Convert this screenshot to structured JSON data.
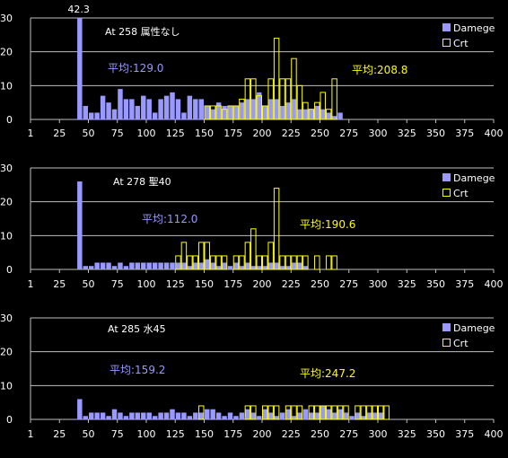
{
  "colors": {
    "background": "#000000",
    "gridline": "#c0c0c0",
    "axis": "#c0c0c0",
    "text": "#ffffff",
    "damage_fill": "#9999ff",
    "crit_stroke": "#ffff00",
    "damage_avg_text": "#9999ff",
    "crit_avg_text": "#ffff00"
  },
  "chart_data": [
    {
      "type": "bar",
      "title": "At 258 属性なし",
      "xlim": [
        0,
        400
      ],
      "ylim": [
        0,
        30
      ],
      "xticks": [
        "1",
        "25",
        "50",
        "75",
        "100",
        "125",
        "150",
        "175",
        "200",
        "225",
        "250",
        "275",
        "300",
        "325",
        "350",
        "375",
        "400"
      ],
      "yticks": [
        "0",
        "10",
        "20",
        "30"
      ],
      "legend_position": "top-right",
      "annotations": [
        {
          "text": "42.3",
          "at_x": 40
        },
        {
          "text": "平均:129.0",
          "series": "Damege"
        },
        {
          "text": "平均:208.8",
          "series": "Crt"
        }
      ],
      "series": [
        {
          "name": "Damege",
          "x": [
            40,
            45,
            50,
            55,
            60,
            65,
            70,
            75,
            80,
            85,
            90,
            95,
            100,
            105,
            110,
            115,
            120,
            125,
            130,
            135,
            140,
            145,
            150,
            155,
            160,
            165,
            170,
            175,
            180,
            185,
            190,
            195,
            200,
            205,
            210,
            215,
            220,
            225,
            230,
            235,
            240,
            245,
            250,
            255,
            260,
            265
          ],
          "values": [
            30,
            4,
            2,
            2,
            7,
            5,
            3,
            9,
            6,
            6,
            4,
            7,
            6,
            2,
            6,
            7,
            8,
            6,
            2,
            7,
            6,
            6,
            4,
            3,
            5,
            4,
            4,
            4,
            5,
            6,
            6,
            8,
            4,
            6,
            6,
            4,
            5,
            6,
            3,
            3,
            3,
            4,
            3,
            2,
            1,
            2
          ]
        },
        {
          "name": "Crt",
          "x": [
            150,
            155,
            160,
            165,
            170,
            175,
            180,
            185,
            190,
            195,
            200,
            205,
            210,
            215,
            220,
            225,
            230,
            235,
            240,
            245,
            250,
            255,
            260
          ],
          "values": [
            4,
            4,
            4,
            3,
            4,
            4,
            6,
            12,
            12,
            7,
            4,
            12,
            24,
            12,
            12,
            18,
            10,
            5,
            3,
            5,
            8,
            3,
            12
          ]
        }
      ]
    },
    {
      "type": "bar",
      "title": "At 278 聖40",
      "xlim": [
        0,
        400
      ],
      "ylim": [
        0,
        30
      ],
      "xticks": [
        "1",
        "25",
        "50",
        "75",
        "100",
        "125",
        "150",
        "175",
        "200",
        "225",
        "250",
        "275",
        "300",
        "325",
        "350",
        "375",
        "400"
      ],
      "yticks": [
        "0",
        "10",
        "20",
        "30"
      ],
      "legend_position": "top-right",
      "annotations": [
        {
          "text": "平均:112.0",
          "series": "Damege"
        },
        {
          "text": "平均:190.6",
          "series": "Crt"
        }
      ],
      "series": [
        {
          "name": "Damege",
          "x": [
            40,
            45,
            50,
            55,
            60,
            65,
            70,
            75,
            80,
            85,
            90,
            95,
            100,
            105,
            110,
            115,
            120,
            125,
            130,
            135,
            140,
            145,
            150,
            155,
            160,
            165,
            170,
            175,
            180,
            185,
            190,
            195,
            200,
            205,
            210,
            215,
            220,
            225,
            230,
            235
          ],
          "values": [
            26,
            1,
            1,
            2,
            2,
            2,
            1,
            2,
            1,
            2,
            2,
            2,
            2,
            2,
            2,
            2,
            2,
            2,
            2,
            1,
            2,
            2,
            3,
            2,
            1,
            2,
            1,
            2,
            1,
            2,
            1,
            1,
            1,
            2,
            2,
            1,
            1,
            2,
            2,
            1
          ]
        },
        {
          "name": "Crt",
          "x": [
            125,
            130,
            135,
            140,
            145,
            150,
            155,
            160,
            165,
            175,
            180,
            185,
            190,
            195,
            200,
            205,
            210,
            215,
            220,
            225,
            230,
            235,
            245,
            255,
            260
          ],
          "values": [
            4,
            8,
            4,
            4,
            8,
            8,
            4,
            4,
            4,
            4,
            4,
            8,
            12,
            4,
            4,
            8,
            24,
            4,
            4,
            4,
            4,
            4,
            4,
            4,
            4
          ]
        }
      ]
    },
    {
      "type": "bar",
      "title": "At 285 水45",
      "xlim": [
        0,
        400
      ],
      "ylim": [
        0,
        30
      ],
      "xticks": [
        "1",
        "25",
        "50",
        "75",
        "100",
        "125",
        "150",
        "175",
        "200",
        "225",
        "250",
        "275",
        "300",
        "325",
        "350",
        "375",
        "400"
      ],
      "yticks": [
        "0",
        "10",
        "20",
        "30"
      ],
      "legend_position": "top-right",
      "annotations": [
        {
          "text": "平均:159.2",
          "series": "Damege"
        },
        {
          "text": "平均:247.2",
          "series": "Crt"
        }
      ],
      "series": [
        {
          "name": "Damege",
          "x": [
            40,
            45,
            50,
            55,
            60,
            65,
            70,
            75,
            80,
            85,
            90,
            95,
            100,
            105,
            110,
            115,
            120,
            125,
            130,
            135,
            140,
            145,
            150,
            155,
            160,
            165,
            170,
            175,
            180,
            185,
            190,
            195,
            200,
            205,
            210,
            215,
            220,
            225,
            230,
            235,
            240,
            245,
            250,
            255,
            260,
            265,
            270,
            275,
            280,
            285,
            290,
            295,
            300
          ],
          "values": [
            6,
            1,
            2,
            2,
            2,
            1,
            3,
            2,
            1,
            2,
            2,
            2,
            2,
            1,
            2,
            2,
            3,
            2,
            2,
            1,
            2,
            2,
            3,
            3,
            2,
            1,
            2,
            1,
            2,
            3,
            2,
            1,
            3,
            2,
            1,
            2,
            3,
            1,
            2,
            3,
            2,
            2,
            4,
            3,
            2,
            3,
            2,
            1,
            2,
            1,
            2,
            2,
            2
          ]
        },
        {
          "name": "Crt",
          "x": [
            145,
            185,
            190,
            200,
            205,
            210,
            220,
            225,
            230,
            240,
            245,
            250,
            255,
            260,
            265,
            270,
            280,
            285,
            290,
            295,
            300,
            305
          ],
          "values": [
            4,
            4,
            4,
            4,
            4,
            4,
            4,
            4,
            4,
            4,
            4,
            4,
            4,
            4,
            4,
            4,
            4,
            4,
            4,
            4,
            4,
            4
          ]
        }
      ]
    }
  ]
}
